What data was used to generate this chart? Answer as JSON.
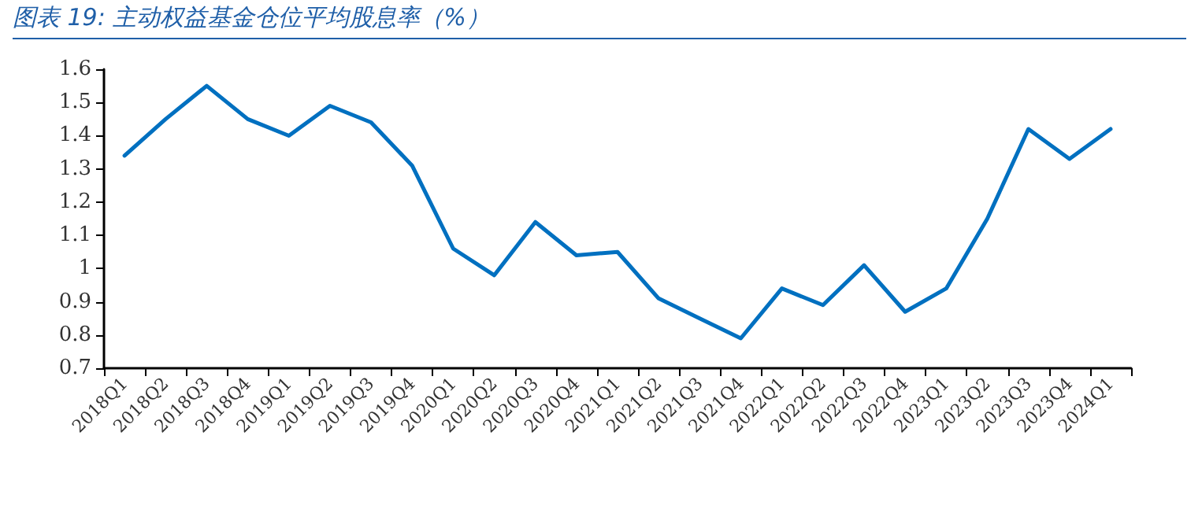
{
  "chart_data": {
    "type": "line",
    "title": "图表 19: 主动权益基金仓位平均股息率（%）",
    "categories": [
      "2018Q1",
      "2018Q2",
      "2018Q3",
      "2018Q4",
      "2019Q1",
      "2019Q2",
      "2019Q3",
      "2019Q4",
      "2020Q1",
      "2020Q2",
      "2020Q3",
      "2020Q4",
      "2021Q1",
      "2021Q2",
      "2021Q3",
      "2021Q4",
      "2022Q1",
      "2022Q2",
      "2022Q3",
      "2022Q4",
      "2023Q1",
      "2023Q2",
      "2023Q3",
      "2023Q4",
      "2024Q1"
    ],
    "series": [
      {
        "color": "#0070c0",
        "values": [
          1.34,
          1.45,
          1.55,
          1.45,
          1.4,
          1.49,
          1.44,
          1.31,
          1.06,
          0.98,
          1.14,
          1.04,
          1.05,
          0.91,
          0.85,
          0.79,
          0.94,
          0.89,
          1.01,
          0.87,
          0.94,
          1.15,
          1.42,
          1.33,
          1.42
        ]
      }
    ],
    "ylim": [
      0.7,
      1.6
    ],
    "yticks": [
      {
        "value": 0.7,
        "label": "0.7"
      },
      {
        "value": 0.8,
        "label": "0.8"
      },
      {
        "value": 0.9,
        "label": "0.9"
      },
      {
        "value": 1,
        "label": "1"
      },
      {
        "value": 1.1,
        "label": "1.1"
      },
      {
        "value": 1.2,
        "label": "1.2"
      },
      {
        "value": 1.3,
        "label": "1.3"
      },
      {
        "value": 1.4,
        "label": "1.4"
      },
      {
        "value": 1.5,
        "label": "1.5"
      },
      {
        "value": 1.6,
        "label": "1.6"
      }
    ],
    "grid": false,
    "marker": "none",
    "line_style": "solid"
  }
}
